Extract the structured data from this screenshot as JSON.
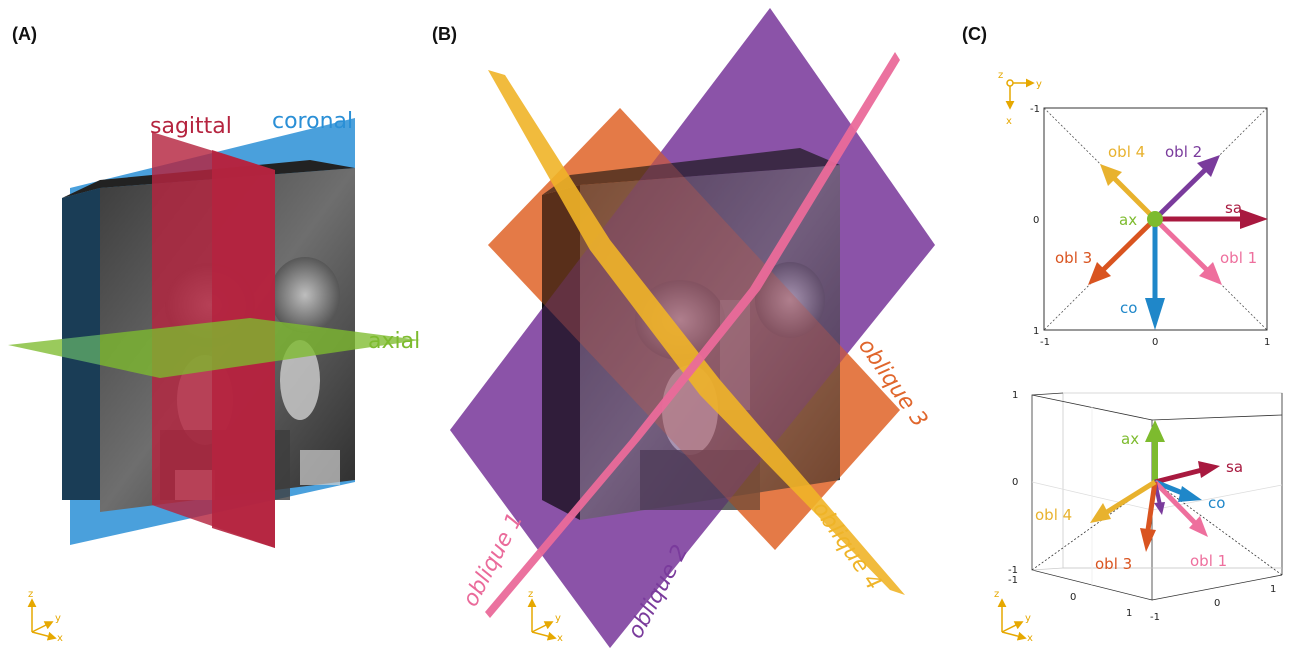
{
  "panels": {
    "a": {
      "label": "(A)",
      "planes": {
        "sagittal": "sagittal",
        "coronal": "coronal",
        "axial": "axial"
      },
      "colors": {
        "sagittal": "#b5243f",
        "coronal": "#2a8fd6",
        "axial": "#7dbb2e"
      }
    },
    "b": {
      "label": "(B)",
      "planes": {
        "oblique1": "oblique 1",
        "oblique2": "oblique 2",
        "oblique3": "oblique 3",
        "oblique4": "oblique 4"
      },
      "colors": {
        "oblique1": "#ea6a9a",
        "oblique2": "#7a3b9c",
        "oblique3": "#e0662c",
        "oblique4": "#efb428"
      }
    },
    "c": {
      "label": "(C)",
      "vectors": {
        "ax": "ax",
        "sa": "sa",
        "co": "co",
        "obl1": "obl 1",
        "obl2": "obl 2",
        "obl3": "obl 3",
        "obl4": "obl 4"
      },
      "top_ticks": {
        "neg": "-1",
        "zero": "0",
        "pos": "1"
      },
      "cube_ticks": {
        "neg": "-1",
        "zero": "0",
        "pos": "1"
      },
      "vector_colors": {
        "ax": "#7dbb2e",
        "sa": "#a8193f",
        "co": "#1f87c9",
        "obl1": "#ee6f9d",
        "obl2": "#7a3b9c",
        "obl3": "#d95420",
        "obl4": "#e8b22e"
      }
    }
  },
  "axes_legend": {
    "x": "x",
    "y": "y",
    "z": "z",
    "color": "#e6a800"
  }
}
